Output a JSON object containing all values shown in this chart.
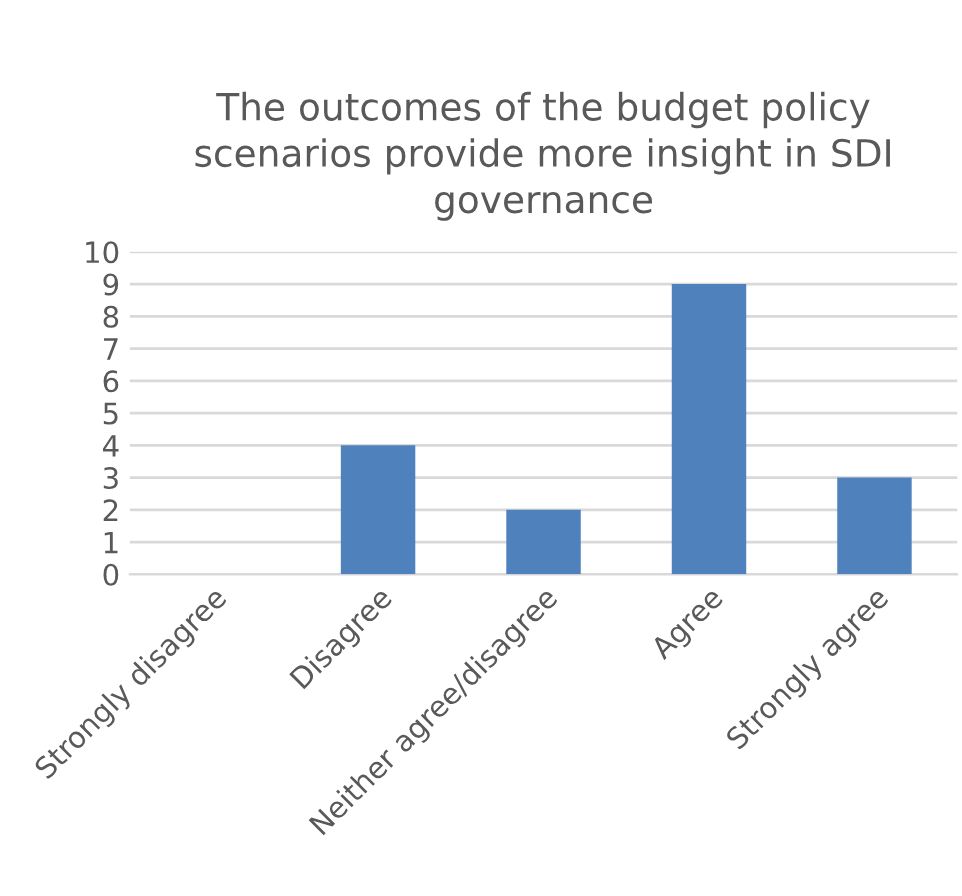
{
  "chart_data": {
    "type": "bar",
    "title": "The outcomes of the budget policy\nscenarios provide more insight in SDI\ngovernance",
    "categories": [
      "Strongly disagree",
      "Disagree",
      "Neither agree/disagree",
      "Agree",
      "Strongly agree"
    ],
    "values": [
      0,
      4,
      2,
      9,
      3
    ],
    "color": "#4f81bd",
    "ylim": [
      0,
      10
    ],
    "yticks": [
      0,
      1,
      2,
      3,
      4,
      5,
      6,
      7,
      8,
      9,
      10
    ],
    "grid": "y",
    "legend": false
  }
}
